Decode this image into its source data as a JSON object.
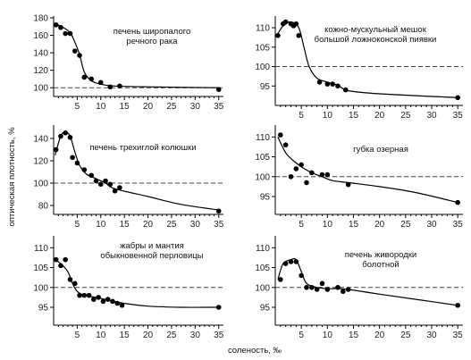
{
  "figure": {
    "ylabel": "оптическая плотность, %",
    "xlabel": "соленость, ‰"
  },
  "chart_data": [
    {
      "type": "scatter",
      "title": "печень широпалого речного рака",
      "title_lines": [
        "печень широпалого",
        "речного рака"
      ],
      "xlim": [
        0,
        36
      ],
      "ylim": [
        90,
        182
      ],
      "yticks": [
        100,
        120,
        140,
        160,
        180
      ],
      "xticks": [
        5,
        10,
        15,
        20,
        25,
        30,
        35
      ],
      "reference_y": 100,
      "points": [
        [
          0.5,
          172
        ],
        [
          1.5,
          169
        ],
        [
          2.5,
          162
        ],
        [
          3.5,
          162
        ],
        [
          4.5,
          142
        ],
        [
          5.5,
          137
        ],
        [
          6.5,
          112
        ],
        [
          8,
          110
        ],
        [
          10,
          106
        ],
        [
          12,
          101
        ],
        [
          14,
          102
        ],
        [
          35,
          98
        ]
      ],
      "curve": [
        [
          0.3,
          173
        ],
        [
          2,
          169
        ],
        [
          3.5,
          163
        ],
        [
          4.5,
          152
        ],
        [
          5.5,
          138
        ],
        [
          6.5,
          118
        ],
        [
          8,
          108
        ],
        [
          10,
          104
        ],
        [
          13,
          102
        ],
        [
          20,
          101
        ],
        [
          35,
          100
        ]
      ]
    },
    {
      "type": "scatter",
      "title": "кожно-мускульный мешок большой ложноконской пиявки",
      "title_lines": [
        "кожно-мускульный мешок",
        "большой ложноконской пиявки"
      ],
      "xlim": [
        0,
        36
      ],
      "ylim": [
        90,
        113
      ],
      "yticks": [
        95,
        100,
        105,
        110
      ],
      "xticks": [
        5,
        10,
        15,
        20,
        25,
        30,
        35
      ],
      "reference_y": 100,
      "points": [
        [
          0.5,
          108
        ],
        [
          1.5,
          111
        ],
        [
          2,
          111.5
        ],
        [
          3,
          111
        ],
        [
          3.5,
          110.5
        ],
        [
          4,
          111
        ],
        [
          4.5,
          108
        ],
        [
          8.5,
          96
        ],
        [
          10,
          95.5
        ],
        [
          11,
          95.5
        ],
        [
          12,
          95
        ],
        [
          13.5,
          94
        ],
        [
          35,
          92
        ]
      ],
      "curve": [
        [
          0.3,
          108
        ],
        [
          1.5,
          110.5
        ],
        [
          3,
          111.5
        ],
        [
          4.5,
          110
        ],
        [
          5.5,
          105
        ],
        [
          6.5,
          100
        ],
        [
          8,
          97
        ],
        [
          10,
          96
        ],
        [
          12,
          95.2
        ],
        [
          14,
          93.8
        ],
        [
          20,
          93
        ],
        [
          35,
          92
        ]
      ]
    },
    {
      "type": "scatter",
      "title": "печень трехиглой колюшки",
      "title_lines": [
        "печень трехиглой колюшки"
      ],
      "xlim": [
        0,
        36
      ],
      "ylim": [
        72,
        152
      ],
      "yticks": [
        80,
        100,
        120,
        140
      ],
      "xticks": [
        5,
        10,
        15,
        20,
        25,
        30,
        35
      ],
      "reference_y": 100,
      "points": [
        [
          0.5,
          130
        ],
        [
          1.5,
          142
        ],
        [
          2.5,
          145
        ],
        [
          3.5,
          141
        ],
        [
          4,
          123
        ],
        [
          5,
          118
        ],
        [
          6.5,
          112
        ],
        [
          8,
          107
        ],
        [
          9,
          102
        ],
        [
          10,
          99
        ],
        [
          11,
          102
        ],
        [
          12,
          99
        ],
        [
          13,
          93
        ],
        [
          14,
          96
        ],
        [
          35,
          75
        ]
      ],
      "curve": [
        [
          0.3,
          125
        ],
        [
          1.5,
          142
        ],
        [
          2.5,
          146
        ],
        [
          3.5,
          142
        ],
        [
          4.5,
          128
        ],
        [
          5.5,
          116
        ],
        [
          7,
          108
        ],
        [
          9,
          104
        ],
        [
          11,
          100
        ],
        [
          13,
          95
        ],
        [
          20,
          88
        ],
        [
          27,
          81
        ],
        [
          35,
          76
        ]
      ]
    },
    {
      "type": "scatter",
      "title": "губка озерная",
      "title_lines": [
        "губка озерная"
      ],
      "xlim": [
        0,
        36
      ],
      "ylim": [
        90.5,
        113
      ],
      "yticks": [
        95,
        100,
        105,
        110
      ],
      "xticks": [
        5,
        10,
        15,
        20,
        25,
        30,
        35
      ],
      "reference_y": 100,
      "points": [
        [
          1,
          110.5
        ],
        [
          2,
          108
        ],
        [
          3,
          100
        ],
        [
          4,
          102
        ],
        [
          5,
          103
        ],
        [
          6,
          98.5
        ],
        [
          7,
          101
        ],
        [
          9,
          100.5
        ],
        [
          10,
          100.5
        ],
        [
          14,
          98
        ],
        [
          35,
          93.5
        ]
      ],
      "curve": [
        [
          0.5,
          110
        ],
        [
          2,
          106
        ],
        [
          3.5,
          104
        ],
        [
          5,
          102.5
        ],
        [
          7,
          101
        ],
        [
          9,
          100
        ],
        [
          11,
          99
        ],
        [
          14,
          98.5
        ],
        [
          20,
          97.5
        ],
        [
          27,
          96
        ],
        [
          35,
          93.5
        ]
      ]
    },
    {
      "type": "scatter",
      "title": "жабры и мантия обыкновенной перловицы",
      "title_lines": [
        "жабры и мантия",
        "обыкновенной перловицы"
      ],
      "xlim": [
        0,
        36
      ],
      "ylim": [
        90.5,
        113
      ],
      "yticks": [
        95,
        100,
        105,
        110
      ],
      "xticks": [
        5,
        10,
        15,
        20,
        25,
        30,
        35
      ],
      "reference_y": 100,
      "points": [
        [
          0.5,
          107
        ],
        [
          1.5,
          105.5
        ],
        [
          2.5,
          107
        ],
        [
          3.5,
          102
        ],
        [
          4.5,
          101
        ],
        [
          5.5,
          98
        ],
        [
          6.5,
          98
        ],
        [
          7.5,
          98
        ],
        [
          8.5,
          97
        ],
        [
          9.5,
          97.5
        ],
        [
          10.5,
          96.5
        ],
        [
          11.5,
          97
        ],
        [
          12.5,
          96.5
        ],
        [
          13.5,
          96
        ],
        [
          14.5,
          95.5
        ],
        [
          35,
          95
        ]
      ],
      "curve": [
        [
          0.3,
          107
        ],
        [
          1.5,
          106
        ],
        [
          3,
          104
        ],
        [
          4,
          101
        ],
        [
          5,
          99
        ],
        [
          6.5,
          98
        ],
        [
          9,
          97.5
        ],
        [
          12,
          96.7
        ],
        [
          15,
          96
        ],
        [
          20,
          95.3
        ],
        [
          27,
          95
        ],
        [
          35,
          95
        ]
      ]
    },
    {
      "type": "scatter",
      "title": "печень живородки болотной",
      "title_lines": [
        "печень живородки",
        "болотной"
      ],
      "xlim": [
        0,
        36
      ],
      "ylim": [
        90.5,
        113
      ],
      "yticks": [
        95,
        100,
        105,
        110
      ],
      "xticks": [
        5,
        10,
        15,
        20,
        25,
        30,
        35
      ],
      "reference_y": 100,
      "points": [
        [
          1,
          102
        ],
        [
          2,
          106
        ],
        [
          3,
          106.5
        ],
        [
          4,
          106.5
        ],
        [
          5,
          103
        ],
        [
          6,
          100
        ],
        [
          7,
          100
        ],
        [
          8,
          99.5
        ],
        [
          9,
          101
        ],
        [
          10,
          99.5
        ],
        [
          12,
          100
        ],
        [
          13,
          99
        ],
        [
          14,
          99.5
        ],
        [
          35,
          95.5
        ]
      ],
      "curve": [
        [
          0.5,
          102
        ],
        [
          1.5,
          106
        ],
        [
          3,
          107
        ],
        [
          4,
          107
        ],
        [
          5,
          104
        ],
        [
          6,
          101
        ],
        [
          8,
          100
        ],
        [
          10,
          99.7
        ],
        [
          12,
          99.7
        ],
        [
          14,
          99.5
        ],
        [
          20,
          98.3
        ],
        [
          27,
          97
        ],
        [
          35,
          95.5
        ]
      ]
    }
  ]
}
